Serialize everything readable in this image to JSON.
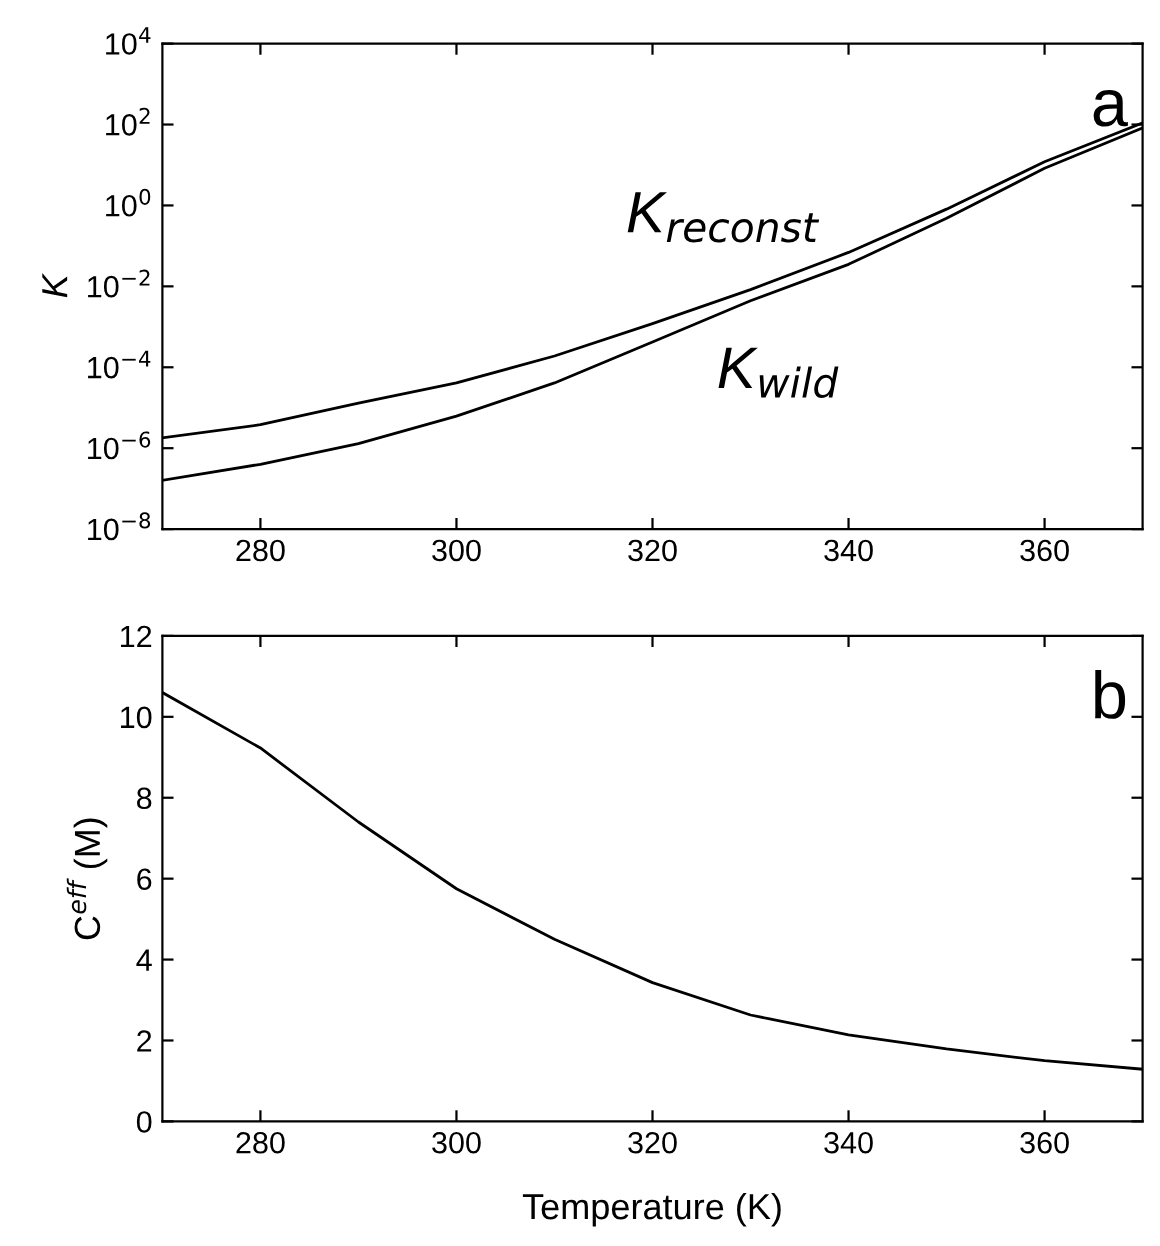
{
  "chart_data": [
    {
      "type": "line",
      "ylabel": "K",
      "annotations": [
        "a"
      ],
      "log": "y",
      "grid": false,
      "legend": false,
      "xlim": [
        270,
        370
      ],
      "xticks": [
        280,
        300,
        320,
        340,
        360
      ],
      "ylim": [
        1e-08,
        10000
      ],
      "yticks": [
        {
          "value": 1e-08,
          "label": "10$^{−8}$"
        },
        {
          "value": 1e-06,
          "label": "10$^{−6}$"
        },
        {
          "value": 0.0001,
          "label": "10$^{−4}$"
        },
        {
          "value": 0.01,
          "label": "10$^{−2}$"
        },
        {
          "value": 1,
          "label": "10$^{0}$"
        },
        {
          "value": 100,
          "label": "10$^{2}$"
        },
        {
          "value": 10000,
          "label": "10$^{4}$"
        }
      ],
      "x": [
        270,
        280,
        290,
        300,
        310,
        320,
        330,
        340,
        350,
        360,
        370
      ],
      "series": [
        {
          "name": "K$_{reconst}$",
          "color": "#000000",
          "values": [
            1.8e-06,
            3.8e-06,
            1.3e-05,
            4.1e-05,
            0.00019,
            0.0012,
            0.0083,
            0.069,
            0.81,
            12,
            110
          ]
        },
        {
          "name": "K$_{wild}$",
          "color": "#000000",
          "values": [
            1.6e-07,
            4e-07,
            1.3e-06,
            6.2e-06,
            4.1e-05,
            0.00042,
            0.0044,
            0.035,
            0.48,
            8.3,
            83
          ]
        }
      ]
    },
    {
      "type": "line",
      "ylabel": "C$^{eff}$ (M)",
      "xlabel": "Temperature (K)",
      "annotations": [
        "b"
      ],
      "grid": false,
      "legend": false,
      "xlim": [
        270,
        370
      ],
      "xticks": [
        280,
        300,
        320,
        340,
        360
      ],
      "ylim": [
        0,
        12
      ],
      "yticks": [
        0,
        2,
        4,
        6,
        8,
        10,
        12
      ],
      "x": [
        270,
        280,
        290,
        300,
        310,
        320,
        330,
        340,
        350,
        360,
        370
      ],
      "series": [
        {
          "color": "#000000",
          "values": [
            10.6,
            9.23,
            7.4,
            5.75,
            4.5,
            3.43,
            2.63,
            2.14,
            1.79,
            1.5,
            1.29
          ]
        }
      ]
    }
  ]
}
